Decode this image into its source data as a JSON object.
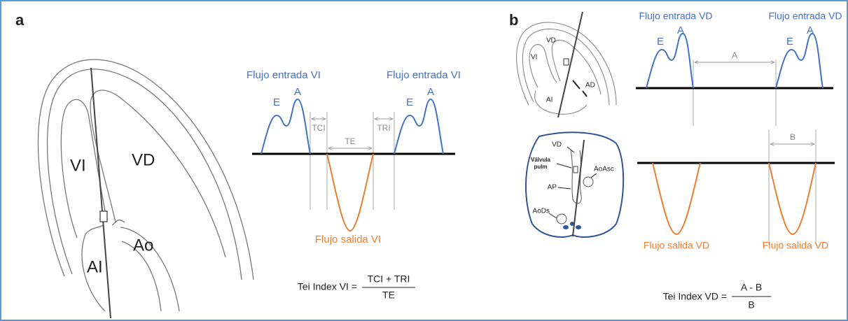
{
  "panel_a": {
    "label": "a",
    "heart_labels": [
      "VI",
      "VD",
      "Ao",
      "AI"
    ],
    "inflow_labels": [
      "Flujo entrada VI",
      "Flujo entrada VI"
    ],
    "peaks": [
      [
        "E",
        "A"
      ],
      [
        "E",
        "A"
      ]
    ],
    "intervals": [
      "TCI",
      "TE",
      "TRI"
    ],
    "outflow_label": "Flujo salida VI",
    "formula": {
      "lhs": "Tei Index VI =",
      "numerator": "TCI + TRI",
      "denominator": "TE"
    }
  },
  "panel_b": {
    "label": "b",
    "heart_labels": [
      "VD",
      "VI",
      "AD",
      "AI"
    ],
    "section_labels": {
      "vd": "VD",
      "valve": [
        "Válvula",
        "pulm"
      ],
      "ao_asc": "AoAsc",
      "ap": "AP",
      "ao_ds": "AoDs"
    },
    "inflow_labels": [
      "Flujo entrada VD",
      "Flujo entrada VD"
    ],
    "peaks": [
      [
        "E",
        "A"
      ],
      [
        "E",
        "A"
      ]
    ],
    "intervals": [
      "A",
      "B"
    ],
    "outflow_labels": [
      "Flujo salida VD",
      "Flujo salida VD"
    ],
    "formula": {
      "lhs": "Tei Index VD =",
      "numerator": "A - B",
      "denominator": "B"
    }
  }
}
